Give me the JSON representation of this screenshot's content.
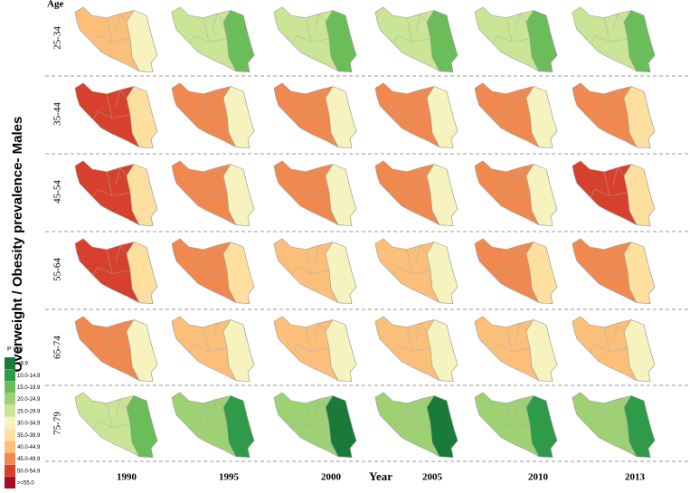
{
  "title": "Overweight / Obesity prevalence- Males",
  "age_heading": "Age",
  "x_heading": "Year",
  "years": [
    "1990",
    "1995",
    "2000",
    "2005",
    "2010",
    "2013"
  ],
  "rows": [
    {
      "age": "25-34",
      "maps": [
        [
          7,
          5
        ],
        [
          4,
          2
        ],
        [
          4,
          2
        ],
        [
          4,
          2
        ],
        [
          4,
          2
        ],
        [
          4,
          2
        ]
      ]
    },
    {
      "age": "35-44",
      "maps": [
        [
          9,
          6
        ],
        [
          8,
          5
        ],
        [
          8,
          5
        ],
        [
          8,
          5
        ],
        [
          8,
          5
        ],
        [
          8,
          6
        ]
      ]
    },
    {
      "age": "45-54",
      "maps": [
        [
          9,
          6
        ],
        [
          8,
          5
        ],
        [
          8,
          5
        ],
        [
          8,
          5
        ],
        [
          8,
          5
        ],
        [
          9,
          6
        ]
      ]
    },
    {
      "age": "55-64",
      "maps": [
        [
          9,
          6
        ],
        [
          8,
          6
        ],
        [
          7,
          5
        ],
        [
          7,
          5
        ],
        [
          8,
          6
        ],
        [
          8,
          6
        ]
      ]
    },
    {
      "age": "65-74",
      "maps": [
        [
          8,
          5
        ],
        [
          7,
          5
        ],
        [
          7,
          5
        ],
        [
          7,
          5
        ],
        [
          7,
          5
        ],
        [
          7,
          5
        ]
      ]
    },
    {
      "age": "75-79",
      "maps": [
        [
          4,
          2
        ],
        [
          3,
          1
        ],
        [
          3,
          0
        ],
        [
          3,
          0
        ],
        [
          3,
          1
        ],
        [
          3,
          1
        ]
      ]
    }
  ],
  "legend": {
    "title": "P (%)",
    "items": [
      {
        "label": "<9.9",
        "color": "#1a7a3a"
      },
      {
        "label": "10.0-14.9",
        "color": "#2f9a4a"
      },
      {
        "label": "15.0-19.9",
        "color": "#6bbd5a"
      },
      {
        "label": "20.0-24.9",
        "color": "#9dd174"
      },
      {
        "label": "25.0-29.9",
        "color": "#cbe596"
      },
      {
        "label": "30.0-34.9",
        "color": "#f7f3bf"
      },
      {
        "label": "35.0-39.9",
        "color": "#fde0a0"
      },
      {
        "label": "40.0-44.9",
        "color": "#fbbf7a"
      },
      {
        "label": "45.0-49.9",
        "color": "#f0894f"
      },
      {
        "label": "50.0-54.9",
        "color": "#d6402c"
      },
      {
        "label": ">=55.0",
        "color": "#a50f26"
      }
    ]
  }
}
